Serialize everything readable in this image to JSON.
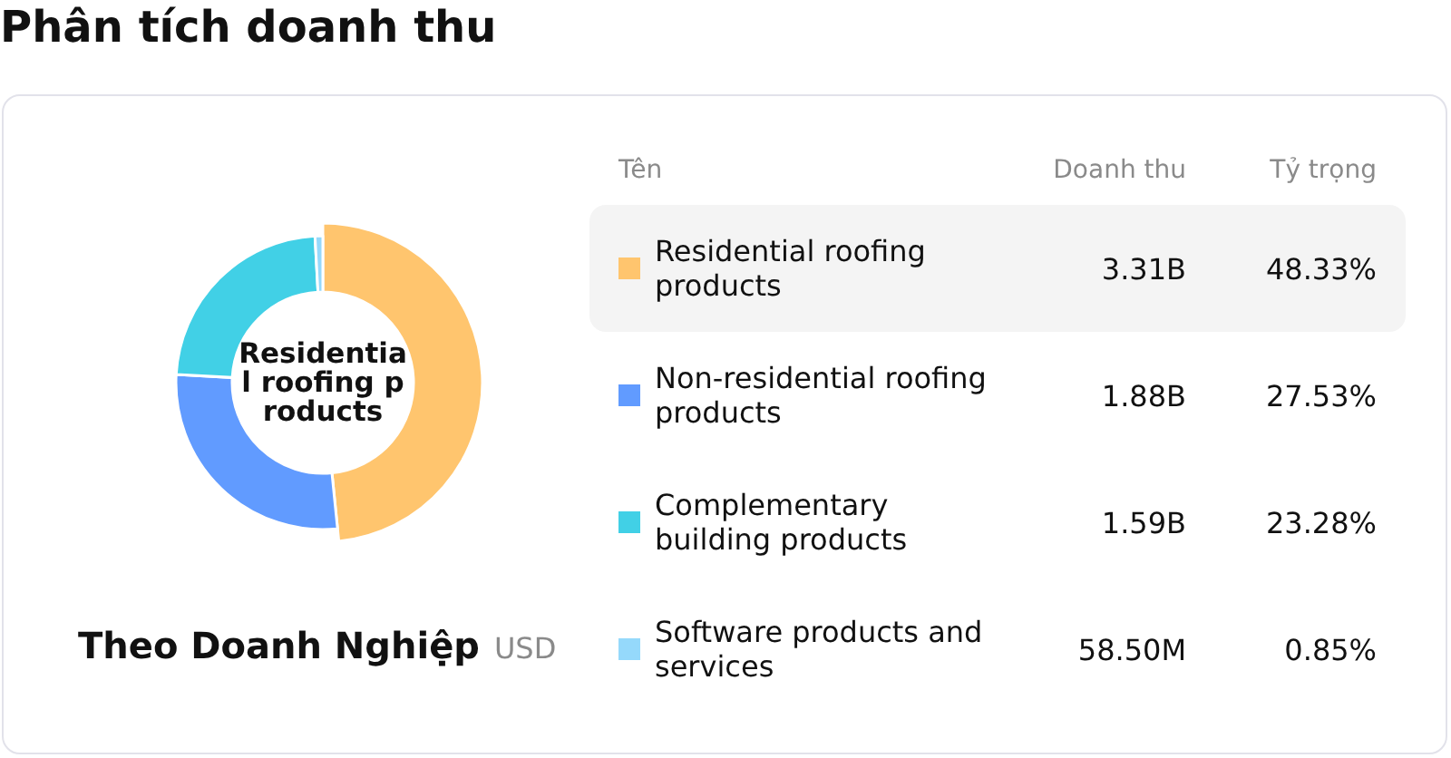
{
  "chart_data": {
    "type": "donut",
    "title": "Phân tích doanh thu",
    "subtitle": "Theo Doanh Nghiệp",
    "categories": [
      "Residential roofing products",
      "Non-residential roofing products",
      "Complementary building products",
      "Software products and services"
    ],
    "values": [
      3310000000,
      1880000000,
      1590000000,
      58500000
    ],
    "value_labels": [
      "3.31B",
      "1.88B",
      "1.59B",
      "58.50M"
    ],
    "colors": [
      "#ffc56e",
      "#619bff",
      "#41d0e6",
      "#95d9fb"
    ],
    "legend": "right",
    "annotations": [
      "Residential roofing products",
      "Tên",
      "Doanh thu",
      "Tỷ trọng",
      "48.33%",
      "27.53%",
      "23.28%",
      "0.85%",
      "USD"
    ]
  }
}
